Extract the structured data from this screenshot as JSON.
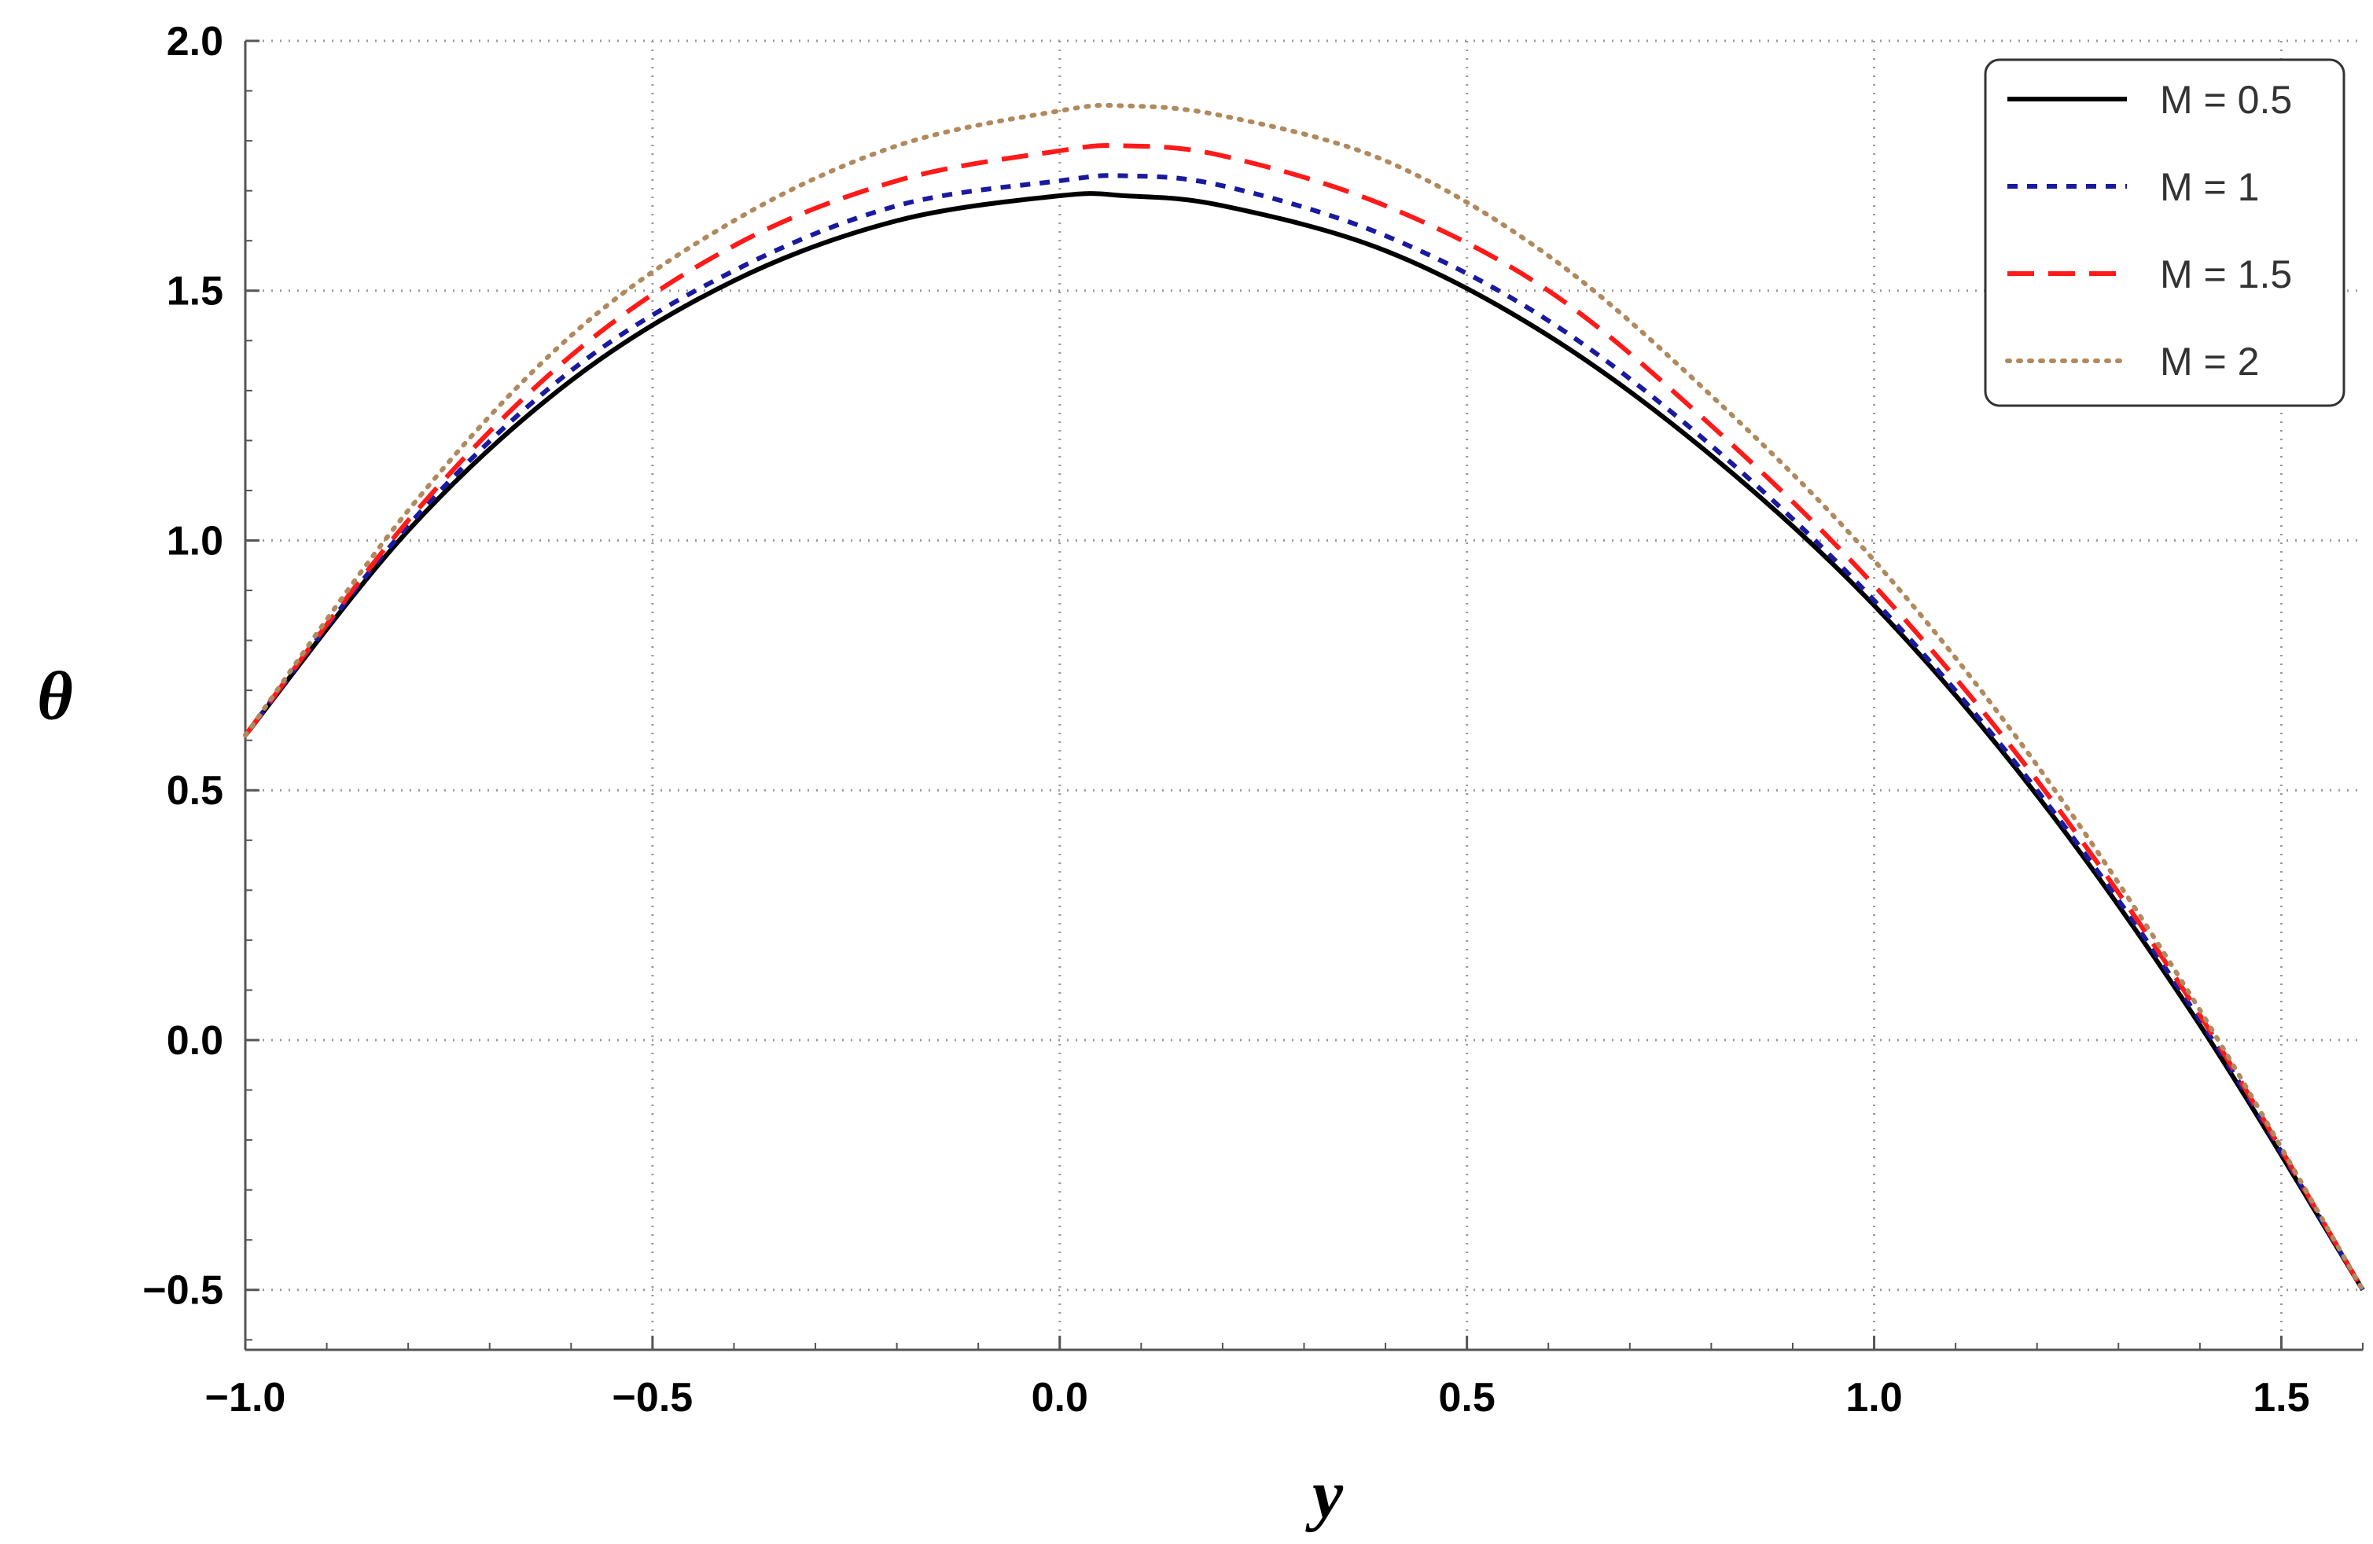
{
  "chart_data": {
    "type": "line",
    "title": "",
    "xlabel": "y",
    "ylabel": "θ",
    "xlim": [
      -1.0,
      1.6
    ],
    "ylim": [
      -0.62,
      2.0
    ],
    "xticks": [
      -1.0,
      -0.5,
      0.0,
      0.5,
      1.0,
      1.5
    ],
    "xtick_labels": [
      "−1.0",
      "−0.5",
      "0.0",
      "0.5",
      "1.0",
      "1.5"
    ],
    "yticks": [
      -0.5,
      0.0,
      0.5,
      1.0,
      1.5,
      2.0
    ],
    "ytick_labels": [
      "−0.5",
      "0.0",
      "0.5",
      "1.0",
      "1.5",
      "2.0"
    ],
    "grid": true,
    "legend_position": "top-right",
    "x": [
      -1.0,
      -0.8,
      -0.6,
      -0.4,
      -0.2,
      0.0,
      0.08,
      0.2,
      0.4,
      0.6,
      0.8,
      1.0,
      1.2,
      1.4,
      1.6
    ],
    "series": [
      {
        "name": "M = 0.5",
        "color": "#000000",
        "style": "solid",
        "values": [
          0.61,
          1.02,
          1.32,
          1.52,
          1.64,
          1.69,
          1.69,
          1.67,
          1.58,
          1.41,
          1.17,
          0.87,
          0.49,
          0.03,
          -0.5
        ]
      },
      {
        "name": "M = 1",
        "color": "#1a1a9e",
        "style": "short-dash",
        "values": [
          0.61,
          1.03,
          1.34,
          1.54,
          1.67,
          1.72,
          1.73,
          1.71,
          1.61,
          1.44,
          1.19,
          0.88,
          0.5,
          0.04,
          -0.5
        ]
      },
      {
        "name": "M = 1.5",
        "color": "#ff1a1a",
        "style": "long-dash",
        "values": [
          0.61,
          1.04,
          1.37,
          1.59,
          1.72,
          1.78,
          1.79,
          1.77,
          1.67,
          1.5,
          1.23,
          0.91,
          0.52,
          0.05,
          -0.5
        ]
      },
      {
        "name": "M = 2",
        "color": "#b08a5e",
        "style": "dotted",
        "values": [
          0.61,
          1.06,
          1.41,
          1.64,
          1.79,
          1.86,
          1.87,
          1.85,
          1.76,
          1.57,
          1.29,
          0.96,
          0.55,
          0.06,
          -0.5
        ]
      }
    ]
  }
}
